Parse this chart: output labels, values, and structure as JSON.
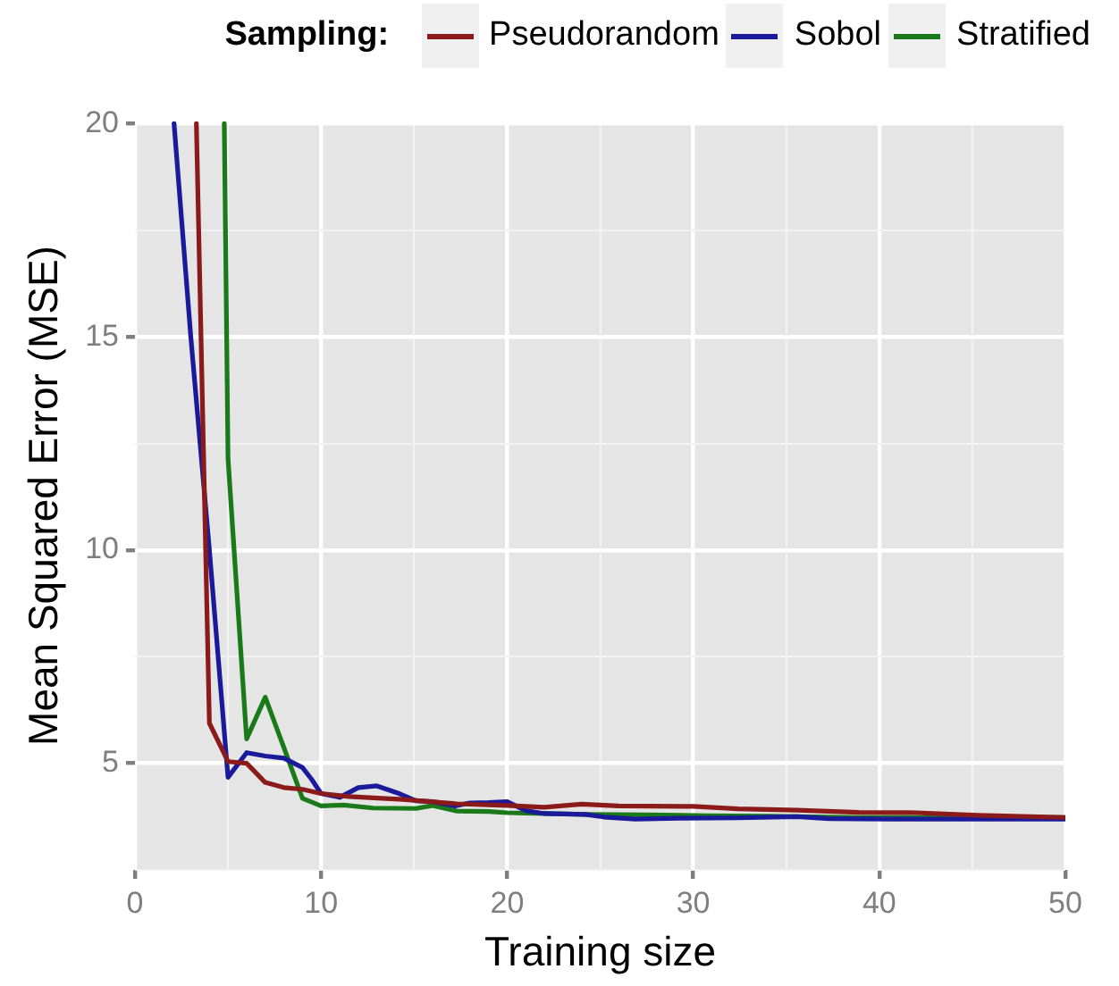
{
  "chart_data": {
    "type": "line",
    "xlabel": "Training size",
    "ylabel": "Mean Squared Error (MSE)",
    "legend_title": "Sampling:",
    "legend": "top",
    "grid": true,
    "marker": "none",
    "line_style": "solid",
    "xlim": [
      0,
      50
    ],
    "xticks": [
      0,
      {
        "value": 5,
        "label": null
      },
      10,
      {
        "value": 15,
        "label": null
      },
      20,
      {
        "value": 25,
        "label": null
      },
      30,
      {
        "value": 35,
        "label": null
      },
      40,
      {
        "value": 45,
        "label": null
      },
      50
    ],
    "ylim": [
      2.5,
      20.05
    ],
    "yticks": [
      {
        "value": 2.5,
        "label": null
      },
      5,
      {
        "value": 7.5,
        "label": null
      },
      10,
      {
        "value": 12.5,
        "label": null
      },
      15,
      {
        "value": 17.5,
        "label": null
      },
      20
    ],
    "series": [
      {
        "name": "Pseudorandom",
        "color": "#8b1a1a",
        "x": [
          3.3,
          4,
          5,
          6,
          7,
          8,
          9,
          10,
          11.5,
          14.4,
          17.3,
          20,
          22,
          24,
          26,
          30,
          32.4,
          35.6,
          38.9,
          42,
          45.3,
          50
        ],
        "values": [
          20,
          5.94,
          5.04,
          5.0,
          4.55,
          4.43,
          4.39,
          4.29,
          4.22,
          4.15,
          4.05,
          4.01,
          3.97,
          4.04,
          4.0,
          3.99,
          3.93,
          3.9,
          3.85,
          3.84,
          3.78,
          3.73
        ]
      },
      {
        "name": "Sobol",
        "color": "#1a1a9b",
        "x": [
          2.1,
          3,
          4,
          5,
          6,
          7,
          8,
          9,
          9.5,
          10,
          11,
          12,
          13,
          14.2,
          15.1,
          16,
          17.2,
          18,
          19,
          20,
          21,
          22,
          24.2,
          25.2,
          26.9,
          29.2,
          32.4,
          35.6,
          37.3,
          40.5,
          43.8,
          50
        ],
        "values": [
          20,
          15.0,
          10.0,
          4.67,
          5.25,
          5.17,
          5.12,
          4.9,
          4.62,
          4.29,
          4.2,
          4.43,
          4.47,
          4.29,
          4.12,
          4.1,
          4.0,
          4.07,
          4.08,
          4.1,
          3.89,
          3.82,
          3.8,
          3.74,
          3.69,
          3.71,
          3.72,
          3.75,
          3.7,
          3.69,
          3.69,
          3.69
        ]
      },
      {
        "name": "Stratified",
        "color": "#1a7a1a",
        "x": [
          4.8,
          5,
          6,
          7,
          8,
          9,
          10,
          11.2,
          12.8,
          15.1,
          16,
          17.3,
          19,
          20,
          22,
          24.2,
          27.5,
          30.8,
          34,
          38.9,
          50
        ],
        "values": [
          20,
          12.15,
          5.57,
          6.55,
          5.37,
          4.18,
          4.0,
          4.02,
          3.95,
          3.94,
          4.01,
          3.88,
          3.87,
          3.84,
          3.82,
          3.8,
          3.79,
          3.77,
          3.76,
          3.73,
          3.73
        ]
      }
    ]
  }
}
